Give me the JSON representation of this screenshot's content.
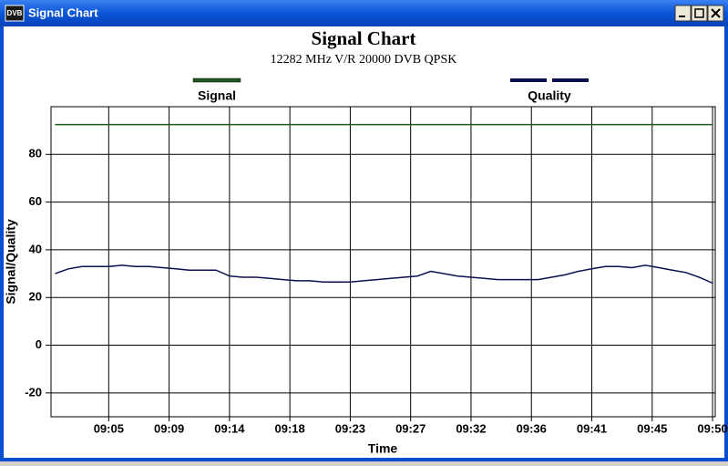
{
  "window": {
    "icon_label": "DVB",
    "title": "Signal Chart"
  },
  "chart_data": {
    "type": "line",
    "title": "Signal Chart",
    "subtitle": "12282 MHz V/R 20000 DVB QPSK",
    "x_label": "Time",
    "y_label": "Signal/Quality",
    "x": [
      541,
      542,
      543,
      544,
      545,
      546,
      547,
      548,
      549,
      550,
      551,
      552,
      553,
      554,
      555,
      556,
      557,
      558,
      559,
      560,
      561,
      562,
      563,
      564,
      565,
      566,
      567,
      568,
      569,
      570,
      571,
      572,
      573,
      574,
      575,
      576,
      577,
      578,
      579,
      580,
      581,
      582,
      583,
      584,
      585,
      586,
      587,
      588,
      589,
      590
    ],
    "series": [
      {
        "name": "Signal",
        "color": "#1f5a1f",
        "values": [
          92.5,
          92.5,
          92.5,
          92.5,
          92.5,
          92.5,
          92.5,
          92.5,
          92.5,
          92.5,
          92.5,
          92.5,
          92.5,
          92.5,
          92.5,
          92.5,
          92.5,
          92.5,
          92.5,
          92.5,
          92.5,
          92.5,
          92.5,
          92.5,
          92.5,
          92.5,
          92.5,
          92.5,
          92.5,
          92.5,
          92.5,
          92.5,
          92.5,
          92.5,
          92.5,
          92.5,
          92.5,
          92.5,
          92.5,
          92.5,
          92.5,
          92.5,
          92.5,
          92.5,
          92.5,
          92.5,
          92.5,
          92.5,
          92.5,
          92.5
        ]
      },
      {
        "name": "Quality",
        "color": "#0a1050",
        "values": [
          30,
          32,
          33,
          33,
          33,
          33.5,
          33,
          33,
          32.5,
          32,
          31.5,
          31.5,
          31.5,
          29,
          28.5,
          28.5,
          28,
          27.5,
          27,
          27,
          26.5,
          26.5,
          26.5,
          27,
          27.5,
          28,
          28.5,
          29,
          31,
          30,
          29,
          28.5,
          28,
          27.5,
          27.5,
          27.5,
          27.5,
          28.5,
          29.5,
          31,
          32,
          33,
          33,
          32.5,
          33.5,
          32.5,
          31.5,
          30.5,
          28.5,
          26
        ]
      }
    ],
    "xlim": [
      540.7,
      590.2
    ],
    "xticks": [
      {
        "value": 545,
        "label": "09:05"
      },
      {
        "value": 549.5,
        "label": "09:09"
      },
      {
        "value": 554,
        "label": "09:14"
      },
      {
        "value": 558.5,
        "label": "09:18"
      },
      {
        "value": 563,
        "label": "09:23"
      },
      {
        "value": 567.5,
        "label": "09:27"
      },
      {
        "value": 572,
        "label": "09:32"
      },
      {
        "value": 576.5,
        "label": "09:36"
      },
      {
        "value": 581,
        "label": "09:41"
      },
      {
        "value": 585.5,
        "label": "09:45"
      },
      {
        "value": 590,
        "label": "09:50"
      }
    ],
    "ylim": [
      -30,
      100
    ],
    "yticks": [
      -20,
      0,
      20,
      40,
      60,
      80
    ],
    "grid": true
  }
}
